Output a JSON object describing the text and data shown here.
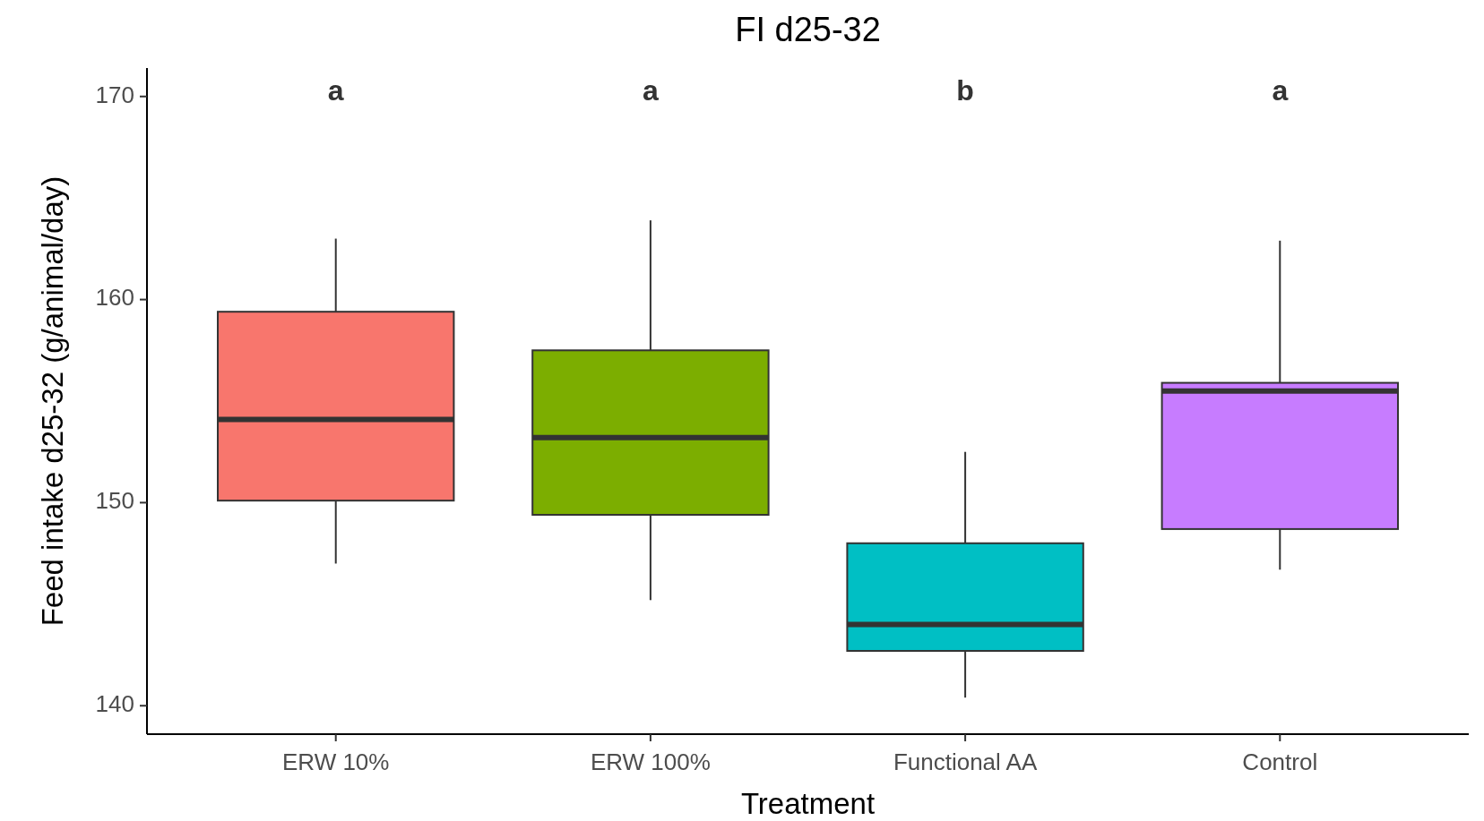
{
  "chart_data": {
    "type": "box",
    "title": "FI d25-32",
    "xlabel": "Treatment",
    "ylabel": "Feed intake d25-32 (g/animal/day)",
    "categories": [
      "ERW 10%",
      "ERW 100%",
      "Functional AA",
      "Control"
    ],
    "colors": [
      "#f8766d",
      "#7cae00",
      "#00bfc4",
      "#c77cff"
    ],
    "boxes": [
      {
        "low": 147.0,
        "q1": 150.1,
        "median": 154.1,
        "q3": 159.4,
        "high": 163.0
      },
      {
        "low": 145.2,
        "q1": 149.4,
        "median": 153.2,
        "q3": 157.5,
        "high": 163.9
      },
      {
        "low": 140.4,
        "q1": 142.7,
        "median": 144.0,
        "q3": 148.0,
        "high": 152.5
      },
      {
        "low": 146.7,
        "q1": 148.7,
        "median": 155.5,
        "q3": 155.9,
        "high": 162.9
      }
    ],
    "ylim": [
      138.6,
      171.4
    ],
    "yticks": [
      140,
      150,
      160,
      170
    ],
    "grid": false,
    "annotations": [
      "a",
      "a",
      "b",
      "a"
    ]
  }
}
